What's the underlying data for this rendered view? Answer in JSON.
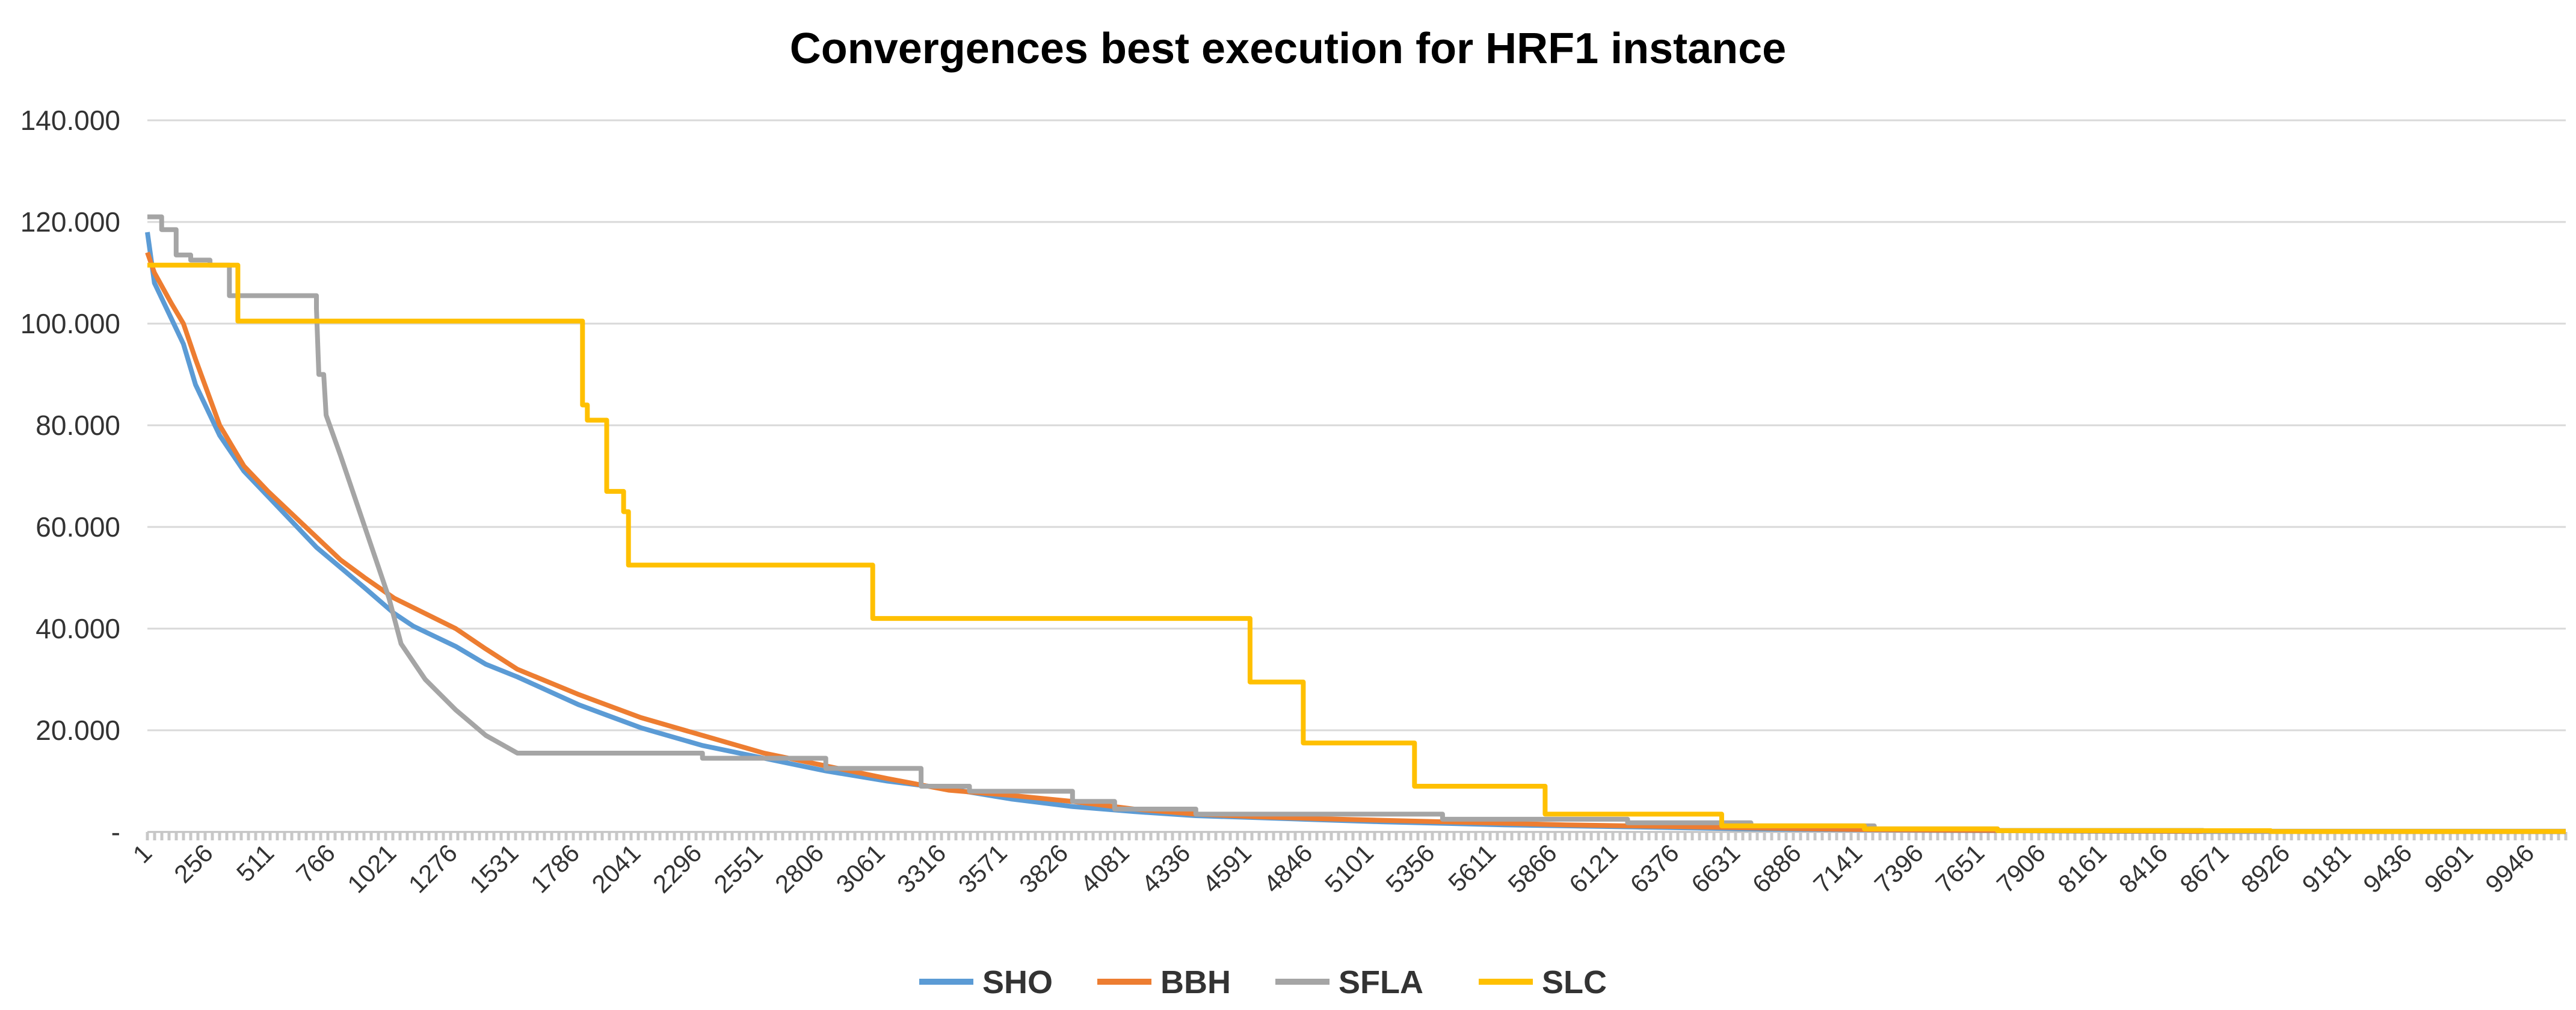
{
  "chart_data": {
    "type": "line",
    "title": "Convergences best execution for HRF1 instance",
    "xlabel": "",
    "ylabel": "",
    "x_ticks": [
      "1",
      "256",
      "511",
      "766",
      "1021",
      "1276",
      "1531",
      "1786",
      "2041",
      "2296",
      "2551",
      "2806",
      "3061",
      "3316",
      "3571",
      "3826",
      "4081",
      "4336",
      "4591",
      "4846",
      "5101",
      "5356",
      "5611",
      "5866",
      "6121",
      "6376",
      "6631",
      "6886",
      "7141",
      "7396",
      "7651",
      "7906",
      "8161",
      "8416",
      "8671",
      "8926",
      "9181",
      "9436",
      "9691",
      "9946"
    ],
    "y_ticks": [
      "-",
      "20.000",
      "40.000",
      "60.000",
      "80.000",
      "100.000",
      "120.000",
      "140.000"
    ],
    "y_tick_values": [
      0,
      20000,
      40000,
      60000,
      80000,
      100000,
      120000,
      140000
    ],
    "xlim": [
      1,
      10000
    ],
    "ylim": [
      0,
      140000
    ],
    "grid": true,
    "legend_position": "bottom",
    "series": [
      {
        "name": "SHO",
        "color": "#5B9BD5",
        "points": [
          [
            1,
            118000
          ],
          [
            30,
            108000
          ],
          [
            100,
            101000
          ],
          [
            150,
            96000
          ],
          [
            200,
            88000
          ],
          [
            300,
            78000
          ],
          [
            400,
            71000
          ],
          [
            500,
            66000
          ],
          [
            600,
            61000
          ],
          [
            700,
            56000
          ],
          [
            800,
            52000
          ],
          [
            900,
            48000
          ],
          [
            1021,
            43000
          ],
          [
            1100,
            40500
          ],
          [
            1276,
            36500
          ],
          [
            1400,
            33000
          ],
          [
            1531,
            30500
          ],
          [
            1786,
            25000
          ],
          [
            2041,
            20500
          ],
          [
            2296,
            17000
          ],
          [
            2551,
            14500
          ],
          [
            2806,
            12000
          ],
          [
            3061,
            10000
          ],
          [
            3316,
            8500
          ],
          [
            3571,
            6500
          ],
          [
            3826,
            5000
          ],
          [
            4081,
            4000
          ],
          [
            4336,
            3200
          ],
          [
            4591,
            2800
          ],
          [
            4846,
            2400
          ],
          [
            5101,
            2000
          ],
          [
            5356,
            1700
          ],
          [
            5611,
            1400
          ],
          [
            5866,
            1200
          ],
          [
            6121,
            1000
          ],
          [
            6376,
            800
          ],
          [
            6631,
            600
          ],
          [
            6886,
            500
          ],
          [
            7141,
            400
          ],
          [
            7396,
            300
          ],
          [
            7651,
            250
          ],
          [
            8000,
            150
          ],
          [
            8500,
            100
          ],
          [
            9000,
            80
          ],
          [
            10000,
            50
          ]
        ]
      },
      {
        "name": "BBH",
        "color": "#ED7D31",
        "points": [
          [
            1,
            114000
          ],
          [
            30,
            110000
          ],
          [
            100,
            104000
          ],
          [
            150,
            100000
          ],
          [
            200,
            93000
          ],
          [
            300,
            80000
          ],
          [
            400,
            72000
          ],
          [
            500,
            67000
          ],
          [
            600,
            62500
          ],
          [
            700,
            58000
          ],
          [
            800,
            53500
          ],
          [
            900,
            50000
          ],
          [
            1021,
            46000
          ],
          [
            1276,
            40000
          ],
          [
            1400,
            36000
          ],
          [
            1531,
            32000
          ],
          [
            1786,
            27000
          ],
          [
            2041,
            22500
          ],
          [
            2296,
            19000
          ],
          [
            2551,
            15500
          ],
          [
            2806,
            13000
          ],
          [
            3061,
            10500
          ],
          [
            3316,
            8200
          ],
          [
            3571,
            7200
          ],
          [
            3826,
            6000
          ],
          [
            4081,
            4500
          ],
          [
            4336,
            3500
          ],
          [
            4591,
            3000
          ],
          [
            4846,
            2600
          ],
          [
            5101,
            2300
          ],
          [
            5356,
            2000
          ],
          [
            5611,
            1700
          ],
          [
            5866,
            1400
          ],
          [
            6121,
            1200
          ],
          [
            6376,
            1000
          ],
          [
            6631,
            800
          ],
          [
            6886,
            600
          ],
          [
            7141,
            450
          ],
          [
            7396,
            350
          ],
          [
            7651,
            300
          ],
          [
            8000,
            200
          ],
          [
            8500,
            150
          ],
          [
            9000,
            100
          ],
          [
            10000,
            80
          ]
        ]
      },
      {
        "name": "SFLA",
        "color": "#A5A5A5",
        "points": [
          [
            1,
            121000
          ],
          [
            60,
            121000
          ],
          [
            60,
            118500
          ],
          [
            120,
            118500
          ],
          [
            120,
            113500
          ],
          [
            180,
            113500
          ],
          [
            180,
            112500
          ],
          [
            260,
            112500
          ],
          [
            260,
            111500
          ],
          [
            340,
            111500
          ],
          [
            340,
            105500
          ],
          [
            700,
            105500
          ],
          [
            700,
            103000
          ],
          [
            710,
            90000
          ],
          [
            730,
            90000
          ],
          [
            740,
            82000
          ],
          [
            800,
            74000
          ],
          [
            900,
            60000
          ],
          [
            1000,
            46000
          ],
          [
            1050,
            37000
          ],
          [
            1150,
            30000
          ],
          [
            1276,
            24000
          ],
          [
            1400,
            19000
          ],
          [
            1531,
            15500
          ],
          [
            2296,
            15500
          ],
          [
            2296,
            14500
          ],
          [
            2806,
            14500
          ],
          [
            2806,
            12500
          ],
          [
            3200,
            12500
          ],
          [
            3200,
            9000
          ],
          [
            3400,
            9000
          ],
          [
            3400,
            8000
          ],
          [
            3826,
            8000
          ],
          [
            3826,
            6000
          ],
          [
            4000,
            6000
          ],
          [
            4000,
            4500
          ],
          [
            4336,
            4500
          ],
          [
            4336,
            3500
          ],
          [
            5356,
            3500
          ],
          [
            5356,
            2500
          ],
          [
            6121,
            2500
          ],
          [
            6121,
            1800
          ],
          [
            6631,
            1800
          ],
          [
            6631,
            1200
          ],
          [
            7141,
            1200
          ],
          [
            7141,
            600
          ],
          [
            7651,
            600
          ],
          [
            7651,
            300
          ],
          [
            8500,
            300
          ],
          [
            8500,
            150
          ],
          [
            10000,
            150
          ]
        ]
      },
      {
        "name": "SLC",
        "color": "#FFC000",
        "points": [
          [
            1,
            111500
          ],
          [
            375,
            111500
          ],
          [
            375,
            100500
          ],
          [
            1800,
            100500
          ],
          [
            1800,
            84000
          ],
          [
            1820,
            84000
          ],
          [
            1820,
            81000
          ],
          [
            1900,
            81000
          ],
          [
            1900,
            67000
          ],
          [
            1970,
            67000
          ],
          [
            1970,
            63000
          ],
          [
            1990,
            63000
          ],
          [
            1990,
            52500
          ],
          [
            3000,
            52500
          ],
          [
            3000,
            42000
          ],
          [
            4560,
            42000
          ],
          [
            4560,
            29500
          ],
          [
            4780,
            29500
          ],
          [
            4780,
            17500
          ],
          [
            5240,
            17500
          ],
          [
            5240,
            9000
          ],
          [
            5780,
            9000
          ],
          [
            5780,
            3500
          ],
          [
            6510,
            3500
          ],
          [
            6510,
            1200
          ],
          [
            7100,
            1200
          ],
          [
            7100,
            600
          ],
          [
            7650,
            600
          ],
          [
            7650,
            250
          ],
          [
            8780,
            250
          ],
          [
            8780,
            100
          ],
          [
            10000,
            100
          ]
        ]
      }
    ]
  }
}
